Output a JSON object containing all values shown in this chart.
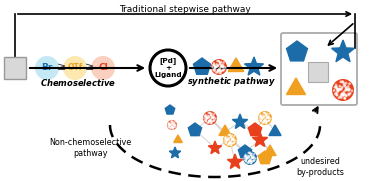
{
  "title": "Traditional stepwise pathway",
  "chemoselective_label": "Chemoselective",
  "synthetic_pathway_label": "synthetic pathway",
  "pd_ligand_text": "[Pd]\n+\nLigand",
  "non_chemo_label": "Non-chemoselective\npathway",
  "undesired_label": "undesired\nby-products",
  "color_blue": "#1b6ca8",
  "color_orange_red": "#e8401c",
  "color_orange": "#f0a020",
  "color_light_blue": "#c5e8f5",
  "color_light_orange": "#fde8b0",
  "color_light_red": "#fad0c0",
  "color_gray": "#cccccc",
  "bg_color": "#ffffff"
}
